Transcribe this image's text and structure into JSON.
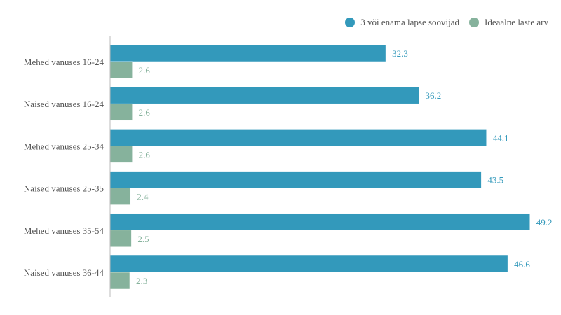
{
  "chart_data": {
    "type": "bar",
    "orientation": "horizontal",
    "title": "",
    "xlabel": "",
    "ylabel": "",
    "categories": [
      "Mehed vanuses 16-24",
      "Naised vanuses 16-24",
      "Mehed vanuses 25-34",
      "Naised vanuses 25-35",
      "Mehed vanuses 35-54",
      "Naised vanuses 36-44"
    ],
    "series": [
      {
        "name": "3 või enama lapse soovijad",
        "color": "#3399bb",
        "values": [
          32.3,
          36.2,
          44.1,
          43.5,
          49.2,
          46.6
        ]
      },
      {
        "name": "Ideaalne laste arv",
        "color": "#86b29c",
        "values": [
          2.6,
          2.6,
          2.6,
          2.4,
          2.5,
          2.3
        ]
      }
    ],
    "xlim": [
      0,
      50
    ],
    "grid": false,
    "legend_position": "top-right",
    "data_labels": true
  }
}
